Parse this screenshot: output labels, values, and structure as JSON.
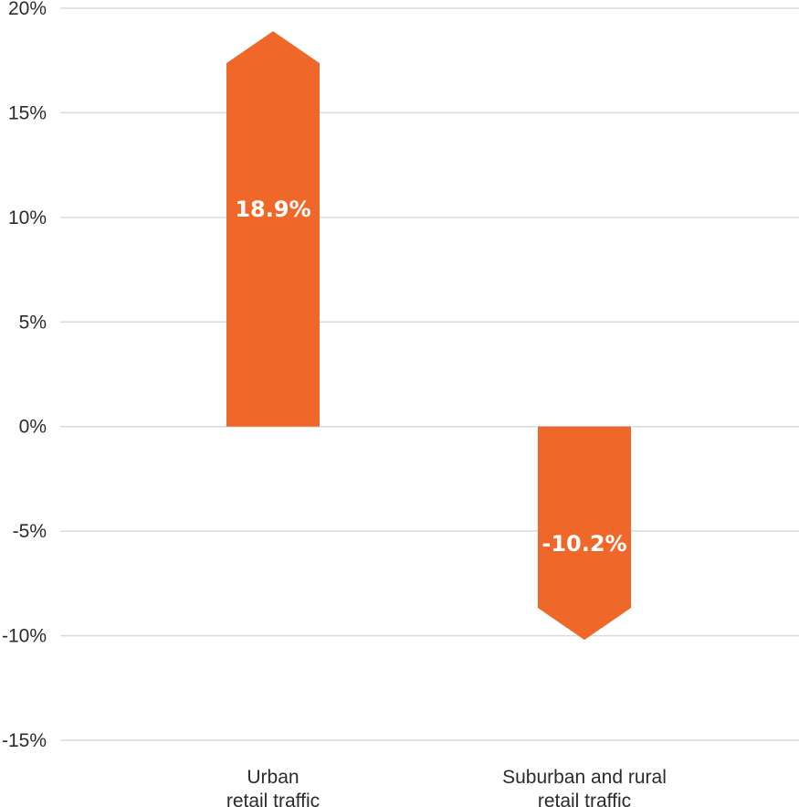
{
  "chart_data": {
    "type": "bar",
    "categories": [
      [
        "Urban",
        "retail traffic"
      ],
      [
        "Suburban and rural",
        "retail traffic"
      ]
    ],
    "values": [
      18.9,
      -10.2
    ],
    "data_labels": [
      "18.9%",
      "-10.2%"
    ],
    "ylim": [
      -15,
      20
    ],
    "yticks": [
      20,
      15,
      10,
      5,
      0,
      -5,
      -10,
      -15
    ],
    "ytick_labels": [
      "20%",
      "15%",
      "10%",
      "5%",
      "0%",
      "-5%",
      "-10%",
      "-15%"
    ],
    "bar_shape": "arrow",
    "grid": true,
    "legend": "none",
    "bar_color": "#EF6729"
  }
}
